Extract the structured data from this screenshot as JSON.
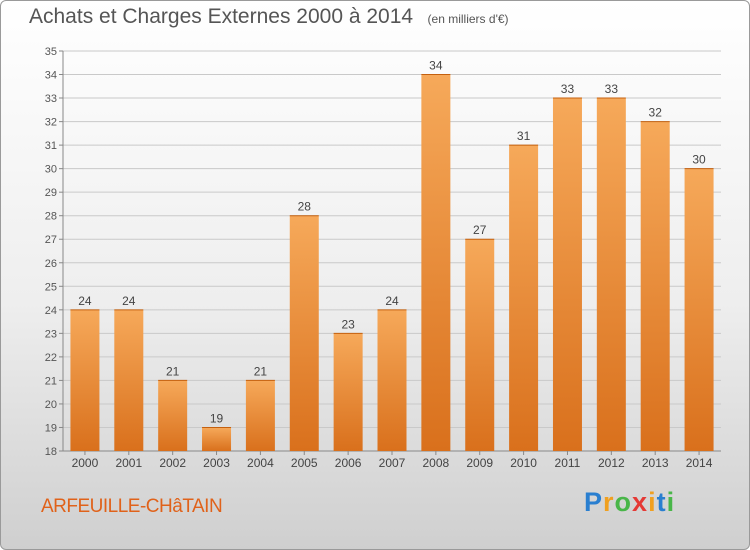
{
  "title": "Achats et Charges Externes 2000 à 2014",
  "unit_note": "(en milliers d'€)",
  "town": "ARFEUILLE-CHâTAIN",
  "logo_text": "Proxiti",
  "colors": {
    "bar_light": "#f6a95a",
    "bar_dark": "#d9701c",
    "grid": "#c9c9c9",
    "town": "#e0621a"
  },
  "chart_data": {
    "type": "bar",
    "categories": [
      "2000",
      "2001",
      "2002",
      "2003",
      "2004",
      "2005",
      "2006",
      "2007",
      "2008",
      "2009",
      "2010",
      "2011",
      "2012",
      "2013",
      "2014"
    ],
    "values": [
      24,
      24,
      21,
      19,
      21,
      28,
      23,
      24,
      34,
      27,
      31,
      33,
      33,
      32,
      30
    ],
    "data_labels": [
      "24",
      "24",
      "21",
      "19",
      "21",
      "28",
      "23",
      "24",
      "34",
      "27",
      "31",
      "33",
      "33",
      "32",
      "30"
    ],
    "ylim": [
      18,
      35
    ],
    "yticks": [
      "18",
      "19",
      "20",
      "21",
      "22",
      "23",
      "24",
      "25",
      "26",
      "27",
      "28",
      "29",
      "30",
      "31",
      "32",
      "33",
      "34",
      "35"
    ],
    "grid": true
  }
}
